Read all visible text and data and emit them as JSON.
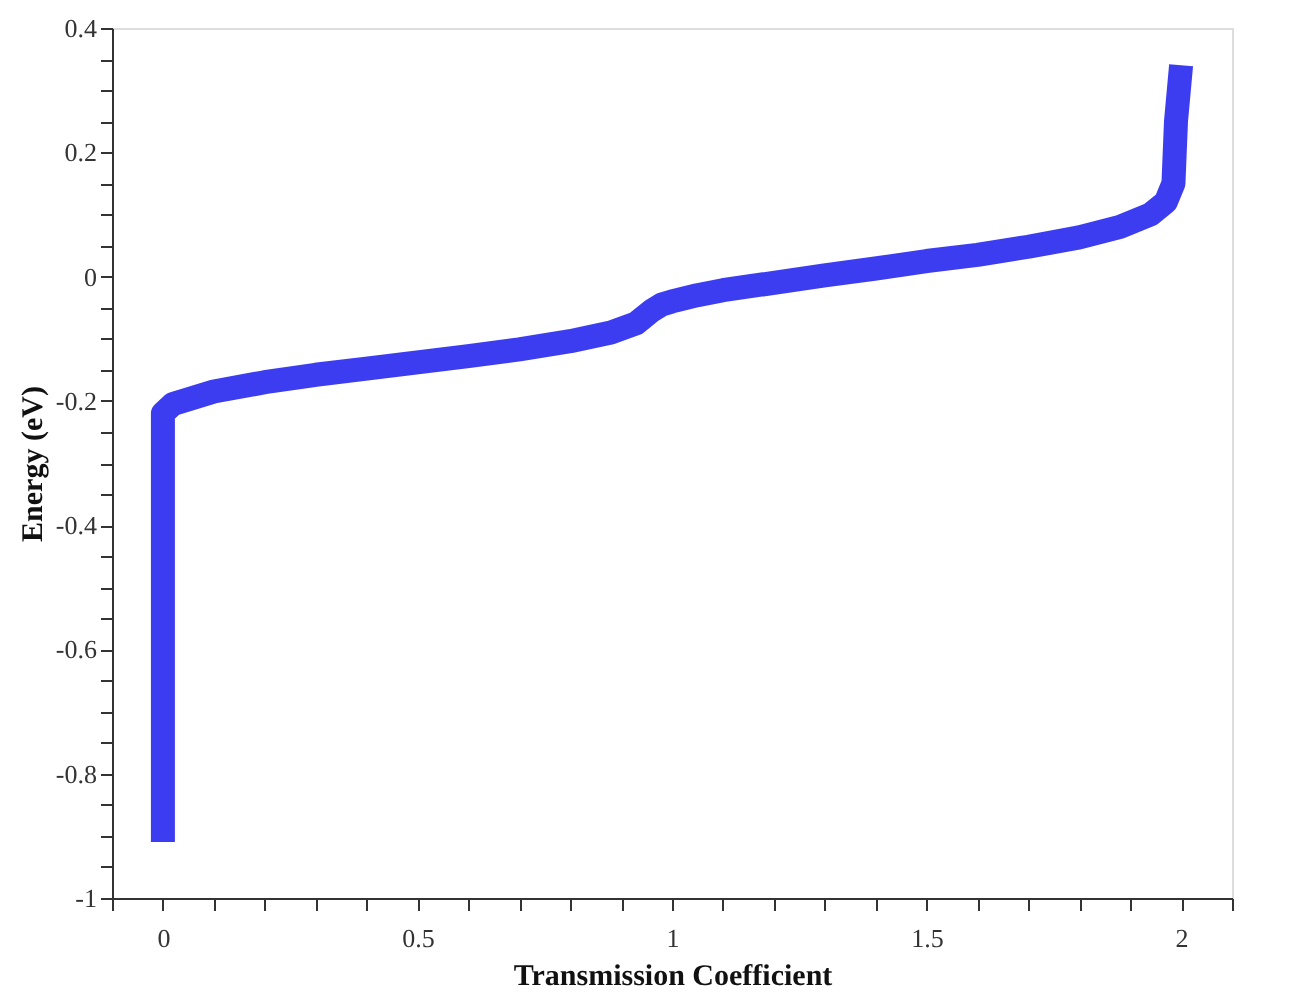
{
  "chart_data": {
    "type": "line",
    "xlabel": "Transmission Coefficient",
    "ylabel": "Energy (eV)",
    "x": [
      0,
      0,
      0.02,
      0.1,
      0.2,
      0.3,
      0.4,
      0.5,
      0.6,
      0.7,
      0.8,
      0.88,
      0.93,
      0.96,
      0.98,
      1.0,
      1.05,
      1.1,
      1.2,
      1.3,
      1.4,
      1.5,
      1.6,
      1.7,
      1.8,
      1.88,
      1.94,
      1.97,
      1.985,
      1.99,
      2.0
    ],
    "series": [
      {
        "color": "#1a1aef",
        "values": [
          -0.91,
          -0.22,
          -0.205,
          -0.185,
          -0.17,
          -0.158,
          -0.148,
          -0.138,
          -0.128,
          -0.117,
          -0.104,
          -0.09,
          -0.075,
          -0.055,
          -0.045,
          -0.04,
          -0.03,
          -0.022,
          -0.01,
          0.002,
          0.013,
          0.025,
          0.035,
          0.048,
          0.063,
          0.08,
          0.1,
          0.12,
          0.15,
          0.25,
          0.34
        ]
      }
    ],
    "xlim": [
      -0.1,
      2.1
    ],
    "ylim": [
      -1,
      0.4
    ],
    "xticks": [
      {
        "value": -0.1,
        "label": null
      },
      0,
      {
        "value": 0.1,
        "label": null
      },
      {
        "value": 0.2,
        "label": null
      },
      {
        "value": 0.3,
        "label": null
      },
      {
        "value": 0.4,
        "label": null
      },
      0.5,
      {
        "value": 0.6,
        "label": null
      },
      {
        "value": 0.7,
        "label": null
      },
      {
        "value": 0.8,
        "label": null
      },
      {
        "value": 0.9,
        "label": null
      },
      1,
      {
        "value": 1.1,
        "label": null
      },
      {
        "value": 1.2,
        "label": null
      },
      {
        "value": 1.3,
        "label": null
      },
      {
        "value": 1.4,
        "label": null
      },
      1.5,
      {
        "value": 1.6,
        "label": null
      },
      {
        "value": 1.7,
        "label": null
      },
      {
        "value": 1.8,
        "label": null
      },
      {
        "value": 1.9,
        "label": null
      },
      2,
      {
        "value": 2.1,
        "label": null
      }
    ],
    "yticks": [
      -1,
      {
        "value": -0.95,
        "label": null
      },
      {
        "value": -0.9,
        "label": null
      },
      {
        "value": -0.85,
        "label": null
      },
      -0.8,
      {
        "value": -0.75,
        "label": null
      },
      {
        "value": -0.7,
        "label": null
      },
      {
        "value": -0.65,
        "label": null
      },
      -0.6,
      {
        "value": -0.55,
        "label": null
      },
      {
        "value": -0.5,
        "label": null
      },
      {
        "value": -0.45,
        "label": null
      },
      -0.4,
      {
        "value": -0.35,
        "label": null
      },
      {
        "value": -0.3,
        "label": null
      },
      {
        "value": -0.25,
        "label": null
      },
      -0.2,
      {
        "value": -0.15,
        "label": null
      },
      {
        "value": -0.1,
        "label": null
      },
      {
        "value": -0.05,
        "label": null
      },
      0,
      {
        "value": 0.05,
        "label": null
      },
      {
        "value": 0.1,
        "label": null
      },
      {
        "value": 0.15,
        "label": null
      },
      0.2,
      {
        "value": 0.25,
        "label": null
      },
      {
        "value": 0.3,
        "label": null
      },
      {
        "value": 0.35,
        "label": null
      },
      0.4
    ],
    "marker": "none",
    "line_style": "solid"
  }
}
